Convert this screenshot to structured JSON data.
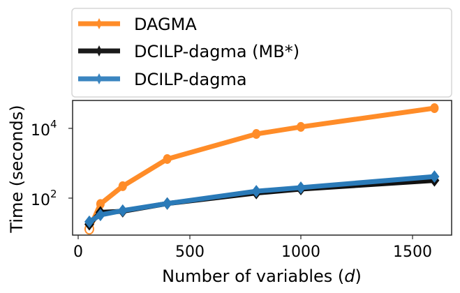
{
  "chart_data": {
    "type": "line",
    "title": "",
    "xlabel": "Number of variables (d)",
    "xlabel_main": "Number of variables (",
    "xlabel_var": "d",
    "xlabel_end": ")",
    "ylabel": "Time (seconds)",
    "yscale": "log",
    "xlim": [
      -25,
      1675
    ],
    "ylim": [
      8.7,
      63000
    ],
    "grid": false,
    "legend_position": "top (above plot)",
    "x_ticks": [
      0,
      500,
      1000,
      1500
    ],
    "x_tick_labels": [
      "0",
      "500",
      "1000",
      "1500"
    ],
    "y_ticks": [
      100,
      10000
    ],
    "y_tick_labels": [
      {
        "base": "10",
        "exp": "2"
      },
      {
        "base": "10",
        "exp": "4"
      }
    ],
    "x": [
      50,
      100,
      200,
      400,
      800,
      1000,
      1600
    ],
    "series": [
      {
        "name": "DAGMA",
        "color": "#ff7f0e",
        "marker": "circle",
        "values": [
          13,
          68,
          220,
          1320,
          6900,
          11000,
          38000
        ]
      },
      {
        "name": "DCILP-dagma (MB*)",
        "color": "#1a1a1a",
        "marker": "diamond",
        "values": [
          19,
          42,
          45,
          75,
          150,
          195,
          345
        ]
      },
      {
        "name": "DCILP-dagma",
        "color": "#1f77b4",
        "marker": "diamond",
        "values": [
          21,
          33,
          44,
          70,
          158,
          200,
          415
        ]
      }
    ]
  },
  "legend": {
    "items": [
      {
        "label": "DAGMA",
        "color": "#ff8c28"
      },
      {
        "label": "DCILP-dagma (MB*)",
        "color": "#1a1a1a"
      },
      {
        "label": "DCILP-dagma",
        "color": "#3a85c0"
      }
    ]
  }
}
